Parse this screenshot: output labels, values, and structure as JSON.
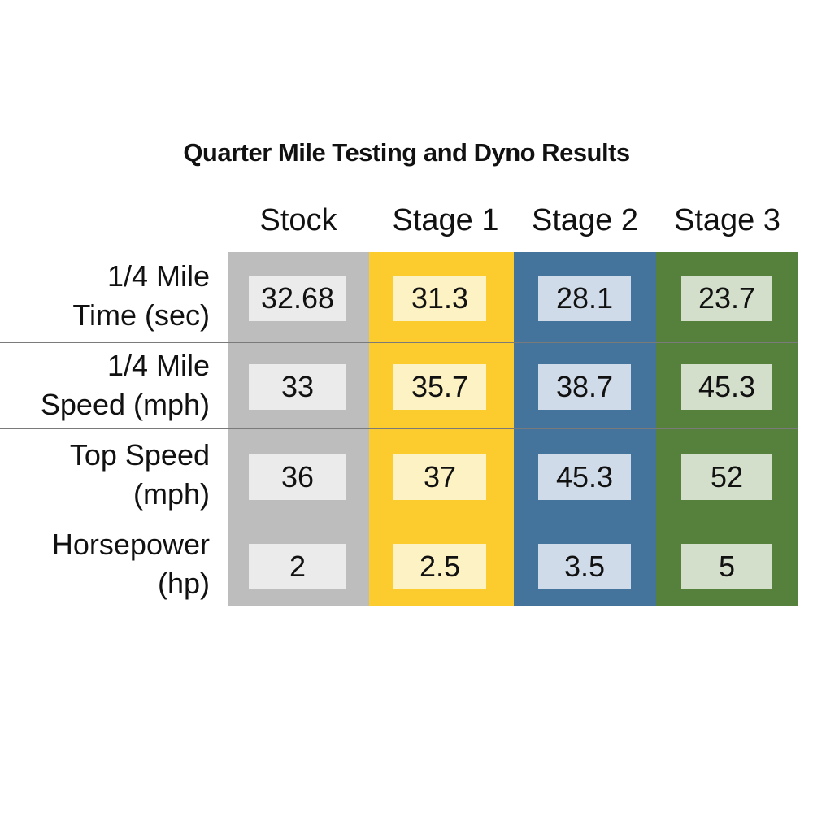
{
  "chart_data": {
    "type": "table",
    "title": "Quarter Mile Testing and Dyno Results",
    "columns": [
      "Stock",
      "Stage 1",
      "Stage 2",
      "Stage 3"
    ],
    "rows": [
      {
        "label_line1": "1/4 Mile",
        "label_line2": "Time (sec)",
        "values": [
          "32.68",
          "31.3",
          "28.1",
          "23.7"
        ]
      },
      {
        "label_line1": "1/4 Mile",
        "label_line2": "Speed (mph)",
        "values": [
          "33",
          "35.7",
          "38.7",
          "45.3"
        ]
      },
      {
        "label_line1": "Top Speed",
        "label_line2": "(mph)",
        "values": [
          "36",
          "37",
          "45.3",
          "52"
        ]
      },
      {
        "label_line1": "Horsepower",
        "label_line2": "(hp)",
        "values": [
          "2",
          "2.5",
          "3.5",
          "5"
        ]
      }
    ]
  },
  "colors": {
    "stock_band": "#bdbdbd",
    "stock_cell": "#ebebeb",
    "stage1_band": "#fccc2e",
    "stage1_cell": "#fdf2c4",
    "stage2_band": "#44739c",
    "stage2_cell": "#cfdbe8",
    "stage3_band": "#55813d",
    "stage3_cell": "#d3dfca"
  }
}
